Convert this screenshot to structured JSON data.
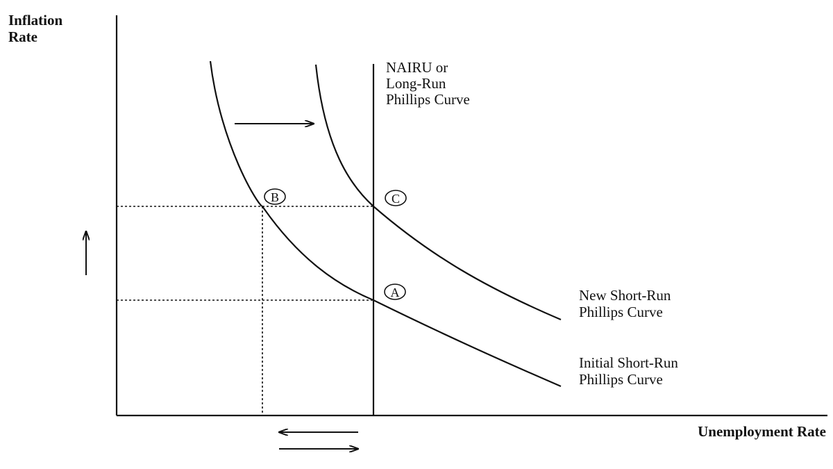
{
  "axes": {
    "y_label_line1": "Inflation",
    "y_label_line2": "Rate",
    "x_label": "Unemployment Rate"
  },
  "lrpc": {
    "label_line1": "NAIRU or",
    "label_line2": "Long-Run",
    "label_line3": "Phillips Curve"
  },
  "new_srpc": {
    "label_line1": "New Short-Run",
    "label_line2": "Phillips Curve"
  },
  "initial_srpc": {
    "label_line1": "Initial Short-Run",
    "label_line2": "Phillips Curve"
  },
  "points": {
    "a": "A",
    "b": "B",
    "c": "C"
  },
  "arrows": {
    "curve_shift": "right-arrow",
    "inflation_rise": "up-arrow",
    "unemployment_left": "left-arrow",
    "unemployment_right": "right-arrow"
  }
}
